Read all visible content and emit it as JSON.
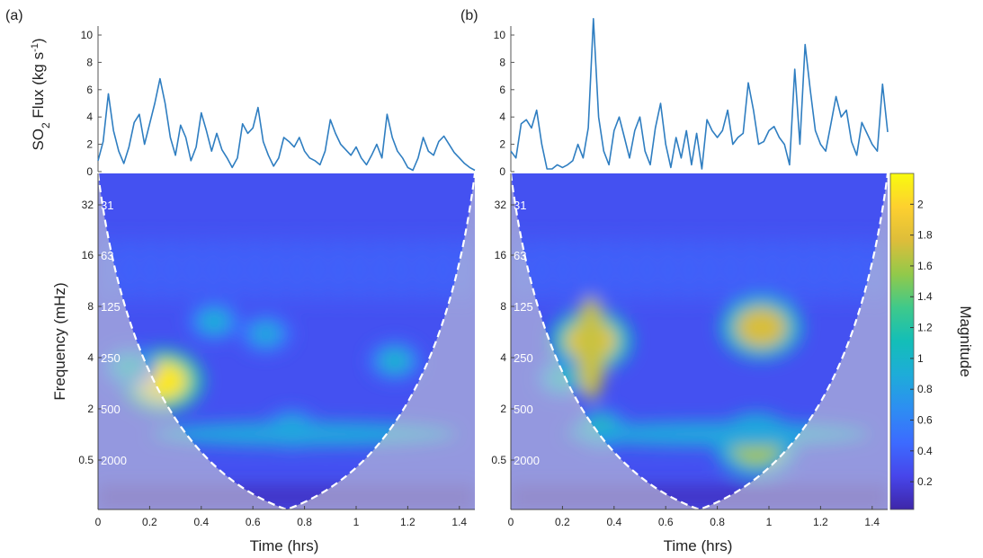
{
  "figure": {
    "panel_labels": [
      "(a)",
      "(b)"
    ],
    "colorbar": {
      "label": "Magnitude",
      "ticks": [
        0.2,
        0.4,
        0.6,
        0.8,
        1,
        1.2,
        1.4,
        1.6,
        1.8,
        2
      ],
      "range": [
        0.02,
        2.2
      ],
      "colormap": "parula"
    },
    "colors": {
      "flux_line": "#2f7ec1",
      "coi_line": "#ffffff",
      "low": "#3e26a8",
      "high": "#f9fb0e"
    }
  },
  "chart_data": [
    {
      "type": "line",
      "panel": "(a)",
      "ylabel": "SO2 Flux (kg s-1)",
      "ylabel_parts": {
        "main": "SO",
        "sub": "2",
        "rest": " Flux (kg s",
        "sup": "-1",
        "end": ")"
      },
      "ylim": [
        0,
        11
      ],
      "yticks": [
        0,
        2,
        4,
        6,
        8,
        10
      ],
      "x": [
        0,
        0.02,
        0.04,
        0.06,
        0.08,
        0.1,
        0.12,
        0.14,
        0.16,
        0.18,
        0.2,
        0.22,
        0.24,
        0.26,
        0.28,
        0.3,
        0.32,
        0.34,
        0.36,
        0.38,
        0.4,
        0.42,
        0.44,
        0.46,
        0.48,
        0.5,
        0.52,
        0.54,
        0.56,
        0.58,
        0.6,
        0.62,
        0.64,
        0.66,
        0.68,
        0.7,
        0.72,
        0.74,
        0.76,
        0.78,
        0.8,
        0.82,
        0.84,
        0.86,
        0.88,
        0.9,
        0.92,
        0.94,
        0.96,
        0.98,
        1.0,
        1.02,
        1.04,
        1.06,
        1.08,
        1.1,
        1.12,
        1.14,
        1.16,
        1.18,
        1.2,
        1.22,
        1.24,
        1.26,
        1.28,
        1.3,
        1.32,
        1.34,
        1.36,
        1.38,
        1.4,
        1.42,
        1.44,
        1.46
      ],
      "y": [
        0.8,
        2.2,
        5.7,
        3.0,
        1.5,
        0.6,
        1.8,
        3.6,
        4.2,
        2.0,
        3.5,
        5.0,
        6.8,
        5.0,
        2.5,
        1.2,
        3.4,
        2.5,
        0.8,
        1.8,
        4.3,
        3.0,
        1.5,
        2.8,
        1.6,
        1.0,
        0.3,
        1.0,
        3.5,
        2.8,
        3.2,
        4.7,
        2.2,
        1.2,
        0.4,
        1.0,
        2.5,
        2.2,
        1.8,
        2.5,
        1.5,
        1.0,
        0.8,
        0.5,
        1.5,
        3.8,
        2.8,
        2.0,
        1.6,
        1.2,
        1.8,
        1.0,
        0.5,
        1.2,
        2.0,
        1.0,
        4.2,
        2.5,
        1.5,
        1.0,
        0.3,
        0.1,
        1.0,
        2.5,
        1.5,
        1.2,
        2.2,
        2.6,
        2.0,
        1.4,
        1.0,
        0.6,
        0.3,
        0.1
      ]
    },
    {
      "type": "line",
      "panel": "(b)",
      "ylim": [
        0,
        11
      ],
      "yticks": [
        0,
        2,
        4,
        6,
        8,
        10
      ],
      "x": [
        0,
        0.02,
        0.04,
        0.06,
        0.08,
        0.1,
        0.12,
        0.14,
        0.16,
        0.18,
        0.2,
        0.22,
        0.24,
        0.26,
        0.28,
        0.3,
        0.32,
        0.34,
        0.36,
        0.38,
        0.4,
        0.42,
        0.44,
        0.46,
        0.48,
        0.5,
        0.52,
        0.54,
        0.56,
        0.58,
        0.6,
        0.62,
        0.64,
        0.66,
        0.68,
        0.7,
        0.72,
        0.74,
        0.76,
        0.78,
        0.8,
        0.82,
        0.84,
        0.86,
        0.88,
        0.9,
        0.92,
        0.94,
        0.96,
        0.98,
        1.0,
        1.02,
        1.04,
        1.06,
        1.08,
        1.1,
        1.12,
        1.14,
        1.16,
        1.18,
        1.2,
        1.22,
        1.24,
        1.26,
        1.28,
        1.3,
        1.32,
        1.34,
        1.36,
        1.38,
        1.4,
        1.42,
        1.44,
        1.46
      ],
      "y": [
        1.5,
        1.0,
        3.5,
        3.8,
        3.2,
        4.5,
        2.0,
        0.2,
        0.2,
        0.5,
        0.3,
        0.5,
        0.8,
        2.0,
        1.0,
        3.2,
        11.2,
        4.0,
        1.5,
        0.5,
        3.0,
        4.0,
        2.5,
        1.0,
        3.0,
        4.0,
        1.5,
        0.5,
        3.2,
        5.0,
        2.0,
        0.3,
        2.5,
        1.0,
        3.0,
        0.5,
        2.8,
        0.2,
        3.8,
        3.0,
        2.5,
        3.0,
        4.5,
        2.0,
        2.5,
        2.8,
        6.5,
        4.5,
        2.0,
        2.2,
        3.0,
        3.3,
        2.5,
        2.0,
        0.5,
        7.5,
        2.0,
        9.3,
        6.0,
        3.0,
        2.0,
        1.5,
        3.5,
        5.5,
        4.0,
        4.5,
        2.2,
        1.2,
        3.6,
        2.8,
        2.0,
        1.5,
        6.4,
        2.9
      ]
    },
    {
      "type": "heatmap",
      "panel": "(a)",
      "xlabel": "Time (hrs)",
      "ylabel": "Frequency (mHz)",
      "xlim": [
        0,
        1.46
      ],
      "xticks": [
        "0",
        "0.2",
        "0.4",
        "0.6",
        "0.8",
        "1",
        "1.2",
        "1.4"
      ],
      "yticks": [
        "32",
        "16",
        "8",
        "4",
        "2",
        "0.5"
      ],
      "period_labels": [
        "31",
        "63",
        "125",
        "250",
        "500",
        "2000"
      ],
      "features": [
        {
          "t": 0.25,
          "f_mhz": 2.9,
          "magnitude": 2.1
        },
        {
          "t": 0.12,
          "f_mhz": 3.5,
          "magnitude": 1.0
        },
        {
          "t": 0.45,
          "f_mhz": 6.5,
          "magnitude": 0.9
        },
        {
          "t": 0.65,
          "f_mhz": 5.5,
          "magnitude": 0.85
        },
        {
          "t": 1.15,
          "f_mhz": 3.8,
          "magnitude": 0.95
        },
        {
          "t": 0.75,
          "f_mhz": 1.5,
          "magnitude": 1.0
        }
      ]
    },
    {
      "type": "heatmap",
      "panel": "(b)",
      "xlabel": "Time (hrs)",
      "xlim": [
        0,
        1.46
      ],
      "xticks": [
        "0",
        "0.2",
        "0.4",
        "0.6",
        "0.8",
        "1",
        "1.2",
        "1.4"
      ],
      "yticks": [
        "32",
        "16",
        "8",
        "4",
        "2",
        "0.5"
      ],
      "period_labels": [
        "31",
        "63",
        "125",
        "250",
        "500",
        "2000"
      ],
      "features": [
        {
          "t": 0.31,
          "f_mhz": 5.0,
          "magnitude": 1.9
        },
        {
          "t": 0.97,
          "f_mhz": 6.0,
          "magnitude": 1.75
        },
        {
          "t": 0.95,
          "f_mhz": 1.2,
          "magnitude": 1.6
        },
        {
          "t": 0.35,
          "f_mhz": 1.5,
          "magnitude": 1.2
        },
        {
          "t": 0.2,
          "f_mhz": 3.0,
          "magnitude": 1.0
        }
      ]
    }
  ]
}
